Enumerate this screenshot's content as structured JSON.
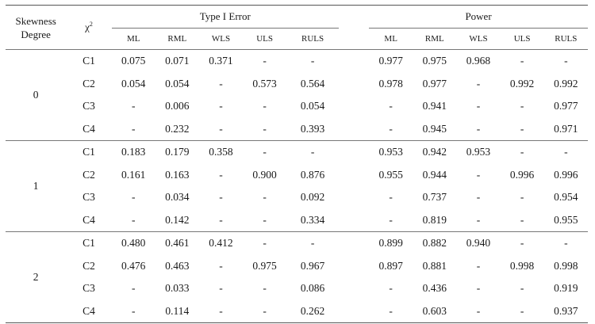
{
  "header": {
    "skewness": "Skewness Degree",
    "chi": "χ",
    "chi_sup": "2",
    "type1_group": "Type I Error",
    "power_group": "Power",
    "type1_methods": [
      "ML",
      "RML",
      "WLS",
      "ULS",
      "RULS"
    ],
    "power_methods": [
      "ML",
      "RML",
      "WLS",
      "ULS",
      "RULS"
    ]
  },
  "groups": [
    {
      "skew": "0",
      "rows": [
        {
          "chi": "C1",
          "type1": [
            "0.075",
            "0.071",
            "0.371",
            "-",
            "-"
          ],
          "power": [
            "0.977",
            "0.975",
            "0.968",
            "-",
            "-"
          ]
        },
        {
          "chi": "C2",
          "type1": [
            "0.054",
            "0.054",
            "-",
            "0.573",
            "0.564"
          ],
          "power": [
            "0.978",
            "0.977",
            "-",
            "0.992",
            "0.992"
          ]
        },
        {
          "chi": "C3",
          "type1": [
            "-",
            "0.006",
            "-",
            "-",
            "0.054"
          ],
          "power": [
            "-",
            "0.941",
            "-",
            "-",
            "0.977"
          ]
        },
        {
          "chi": "C4",
          "type1": [
            "-",
            "0.232",
            "-",
            "-",
            "0.393"
          ],
          "power": [
            "-",
            "0.945",
            "-",
            "-",
            "0.971"
          ]
        }
      ]
    },
    {
      "skew": "1",
      "rows": [
        {
          "chi": "C1",
          "type1": [
            "0.183",
            "0.179",
            "0.358",
            "-",
            "-"
          ],
          "power": [
            "0.953",
            "0.942",
            "0.953",
            "-",
            "-"
          ]
        },
        {
          "chi": "C2",
          "type1": [
            "0.161",
            "0.163",
            "-",
            "0.900",
            "0.876"
          ],
          "power": [
            "0.955",
            "0.944",
            "-",
            "0.996",
            "0.996"
          ]
        },
        {
          "chi": "C3",
          "type1": [
            "-",
            "0.034",
            "-",
            "-",
            "0.092"
          ],
          "power": [
            "-",
            "0.737",
            "-",
            "-",
            "0.954"
          ]
        },
        {
          "chi": "C4",
          "type1": [
            "-",
            "0.142",
            "-",
            "-",
            "0.334"
          ],
          "power": [
            "-",
            "0.819",
            "-",
            "-",
            "0.955"
          ]
        }
      ]
    },
    {
      "skew": "2",
      "rows": [
        {
          "chi": "C1",
          "type1": [
            "0.480",
            "0.461",
            "0.412",
            "-",
            "-"
          ],
          "power": [
            "0.899",
            "0.882",
            "0.940",
            "-",
            "-"
          ]
        },
        {
          "chi": "C2",
          "type1": [
            "0.476",
            "0.463",
            "-",
            "0.975",
            "0.967"
          ],
          "power": [
            "0.897",
            "0.881",
            "-",
            "0.998",
            "0.998"
          ]
        },
        {
          "chi": "C3",
          "type1": [
            "-",
            "0.033",
            "-",
            "-",
            "0.086"
          ],
          "power": [
            "-",
            "0.436",
            "-",
            "-",
            "0.919"
          ]
        },
        {
          "chi": "C4",
          "type1": [
            "-",
            "0.114",
            "-",
            "-",
            "0.262"
          ],
          "power": [
            "-",
            "0.603",
            "-",
            "-",
            "0.937"
          ]
        }
      ]
    }
  ]
}
